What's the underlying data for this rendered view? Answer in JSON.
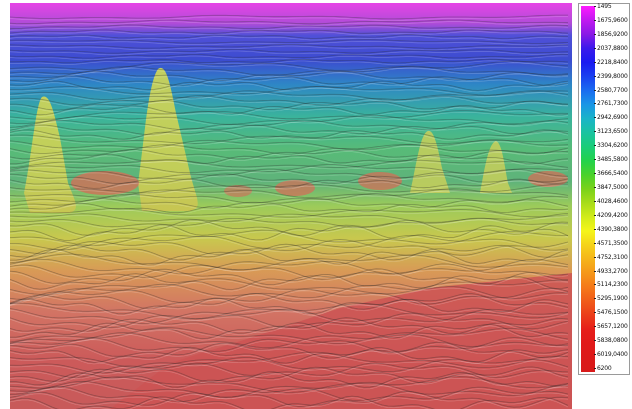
{
  "colorbar": {
    "labels": [
      "1495",
      "1675,9600",
      "1856,9200",
      "2037,8800",
      "2218,8400",
      "2399,8000",
      "2580,7700",
      "2761,7300",
      "2942,6900",
      "3123,6500",
      "3304,6200",
      "3485,5800",
      "3666,5400",
      "3847,5000",
      "4028,4600",
      "4209,4200",
      "4390,3800",
      "4571,3500",
      "4752,3100",
      "4933,2700",
      "5114,2300",
      "5295,1900",
      "5476,1500",
      "5657,1200",
      "5838,0800",
      "6019,0400",
      "6200"
    ],
    "colors": [
      "#ff1aff",
      "#c21af0",
      "#8a1ae6",
      "#3c1aeb",
      "#1a1af0",
      "#1a3ff0",
      "#1a6cf0",
      "#1a96e6",
      "#1ab4c8",
      "#1ac3a0",
      "#1acd78",
      "#22d24b",
      "#4bd22b",
      "#7ad21a",
      "#a8dc1a",
      "#d2ec1a",
      "#f5f51a",
      "#f5d21a",
      "#f5b41a",
      "#f5961a",
      "#f5781a",
      "#f05a1a",
      "#eb3c1a",
      "#e61e1a",
      "#e11a1a",
      "#dc1a1a",
      "#d81a1a"
    ]
  },
  "section": {
    "bands": [
      {
        "depth": 0.0,
        "color": "#e644e6"
      },
      {
        "depth": 0.05,
        "color": "#b04cd8"
      },
      {
        "depth": 0.08,
        "color": "#5050d8"
      },
      {
        "depth": 0.14,
        "color": "#3c4cd0"
      },
      {
        "depth": 0.2,
        "color": "#2e86c6"
      },
      {
        "depth": 0.28,
        "color": "#3ab39c"
      },
      {
        "depth": 0.36,
        "color": "#57bb78"
      },
      {
        "depth": 0.44,
        "color": "#5fb37a"
      },
      {
        "depth": 0.5,
        "color": "#9ccb5a"
      },
      {
        "depth": 0.58,
        "color": "#c8c84e"
      },
      {
        "depth": 0.66,
        "color": "#d89a56"
      },
      {
        "depth": 0.76,
        "color": "#d27464"
      },
      {
        "depth": 0.88,
        "color": "#cc5a5a"
      },
      {
        "depth": 1.0,
        "color": "#c85a5a"
      }
    ]
  }
}
